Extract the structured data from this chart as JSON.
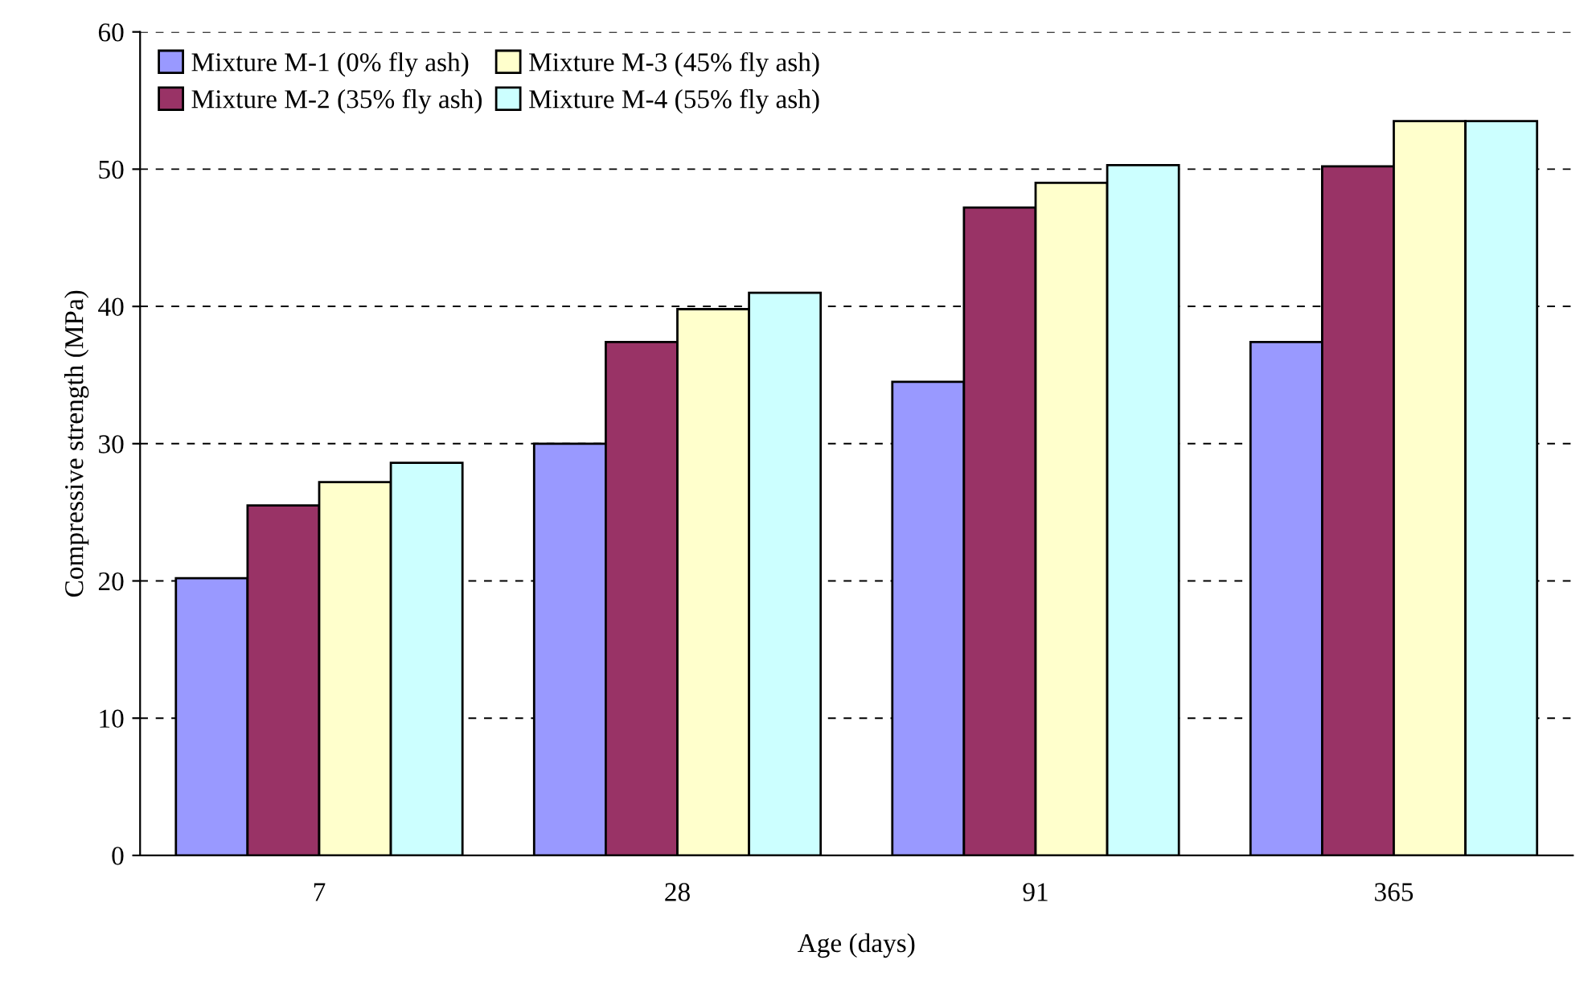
{
  "chart_data": {
    "type": "bar",
    "xlabel": "Age (days)",
    "ylabel": "Compressive strength (MPa)",
    "categories": [
      "7",
      "28",
      "91",
      "365"
    ],
    "series": [
      {
        "name": "Mixture M-1 (0% fly ash)",
        "color": "#9999ff",
        "values": [
          20.2,
          30.0,
          34.5,
          37.4
        ]
      },
      {
        "name": "Mixture M-2 (35% fly ash)",
        "color": "#993366",
        "values": [
          25.5,
          37.4,
          47.2,
          50.2
        ]
      },
      {
        "name": "Mixture M-3 (45% fly ash)",
        "color": "#ffffcc",
        "values": [
          27.2,
          39.8,
          49.0,
          53.5
        ]
      },
      {
        "name": "Mixture M-4 (55% fly ash)",
        "color": "#ccffff",
        "values": [
          28.6,
          41.0,
          50.3,
          53.5
        ]
      }
    ],
    "ylim": [
      0,
      60
    ],
    "yticks": [
      0,
      10,
      20,
      30,
      40,
      50,
      60
    ],
    "grid": "y",
    "legend": "top left"
  }
}
